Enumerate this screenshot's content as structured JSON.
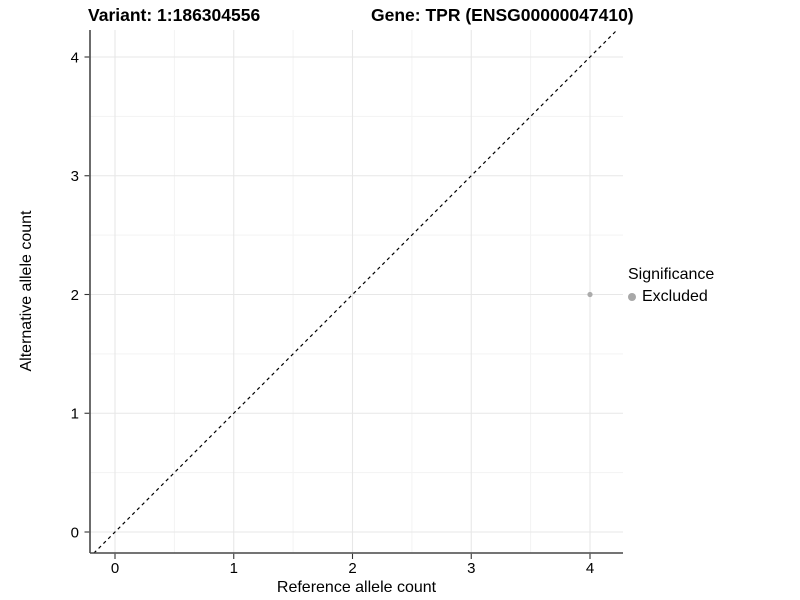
{
  "header": {
    "variant_title": "Variant: 1:186304556",
    "gene_title": "Gene: TPR (ENSG00000047410)"
  },
  "axes": {
    "x": {
      "label": "Reference allele count",
      "ticks": [
        0,
        1,
        2,
        3,
        4
      ]
    },
    "y": {
      "label": "Alternative allele count",
      "ticks": [
        0,
        1,
        2,
        3,
        4
      ]
    }
  },
  "legend": {
    "title": "Significance",
    "items": [
      {
        "label": "Excluded",
        "color": "#a8a8a8"
      }
    ]
  },
  "chart_data": {
    "type": "scatter",
    "title": "Variant: 1:186304556 | Gene: TPR (ENSG00000047410)",
    "xlabel": "Reference allele count",
    "ylabel": "Alternative allele count",
    "xlim": [
      -0.21,
      4.28
    ],
    "ylim": [
      -0.18,
      4.23
    ],
    "x_ticks": [
      0,
      1,
      2,
      3,
      4
    ],
    "y_ticks": [
      0,
      1,
      2,
      3,
      4
    ],
    "grid": true,
    "legend_position": "right",
    "series": [
      {
        "name": "Excluded",
        "color": "#ababab",
        "point_radius": 2.6,
        "points": [
          [
            4,
            2
          ]
        ]
      }
    ],
    "reference_line": {
      "name": "identity",
      "style": "dashed",
      "color": "#000000",
      "from": [
        -0.3,
        -0.3
      ],
      "to": [
        4.5,
        4.5
      ]
    },
    "colors": {
      "grid_major": "#e7e7e7",
      "grid_minor": "#f3f3f3",
      "axis": "#474747",
      "tick": "#333333",
      "text": "#000000",
      "background": "#ffffff"
    }
  }
}
